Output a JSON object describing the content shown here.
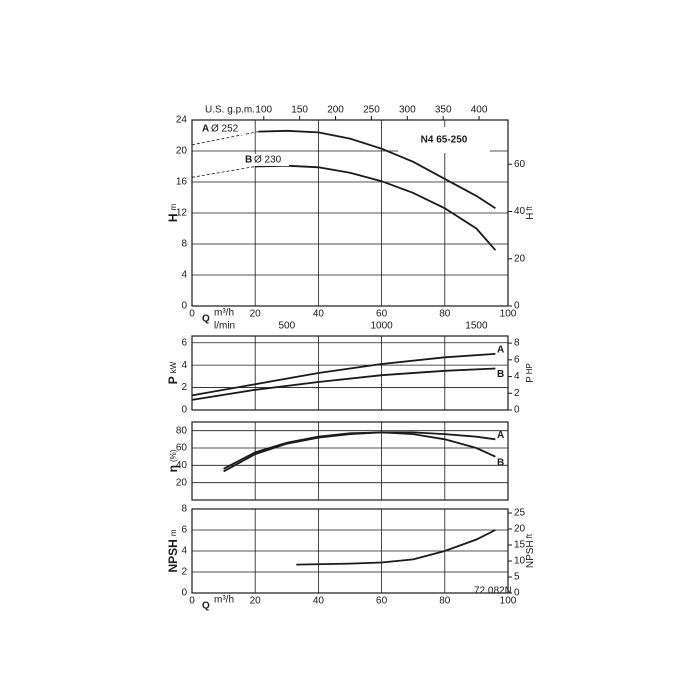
{
  "chart_data": [
    {
      "type": "line",
      "title": "N4 65-250",
      "ylabel": "H",
      "yunit": "m",
      "ylim": [
        0,
        24
      ],
      "yticks": [
        0,
        4,
        8,
        12,
        16,
        20,
        24
      ],
      "y2label": "H",
      "y2unit": "ft",
      "y2lim": [
        0,
        78.74
      ],
      "y2ticks": [
        0,
        20,
        40,
        60
      ],
      "xlabel": "Q",
      "xunit": "m³/h",
      "xlim": [
        0,
        100
      ],
      "xticks": [
        0,
        20,
        40,
        60,
        80,
        100
      ],
      "x2label": "U.S. g.p.m.",
      "x2lim": [
        0,
        440.3
      ],
      "x2ticks": [
        100,
        150,
        200,
        250,
        300,
        350,
        400
      ],
      "x3unit": "l/min",
      "x3lim": [
        0,
        1666.7
      ],
      "x3ticks": [
        500,
        1000,
        1500
      ],
      "grid": true,
      "series": [
        {
          "name": "A",
          "diameter": "Ø 252",
          "color": "#1a1a1a",
          "x": [
            21,
            30,
            40,
            50,
            60,
            70,
            80,
            90,
            96
          ],
          "values": [
            22.5,
            22.6,
            22.4,
            21.6,
            20.3,
            18.6,
            16.4,
            14.2,
            12.6
          ],
          "ext_x": [
            0,
            21
          ],
          "ext_values": [
            20.8,
            22.5
          ]
        },
        {
          "name": "B",
          "diameter": "Ø 230",
          "color": "#1a1a1a",
          "x": [
            20,
            30,
            40,
            50,
            60,
            70,
            80,
            90,
            96
          ],
          "values": [
            18.0,
            18.1,
            17.9,
            17.2,
            16.1,
            14.6,
            12.6,
            10.0,
            7.2
          ],
          "ext_x": [
            0,
            20
          ],
          "ext_values": [
            16.6,
            18.0
          ]
        }
      ]
    },
    {
      "type": "line",
      "ylabel": "P",
      "yunit": "kW",
      "ylim": [
        0,
        6.6
      ],
      "yticks": [
        0,
        2,
        4,
        6
      ],
      "y2label": "P",
      "y2unit": "HP",
      "y2lim": [
        0,
        8.85
      ],
      "y2ticks": [
        0,
        2,
        4,
        6,
        8
      ],
      "xlim": [
        0,
        100
      ],
      "grid": true,
      "series": [
        {
          "name": "A",
          "color": "#1a1a1a",
          "x": [
            0,
            20,
            40,
            60,
            80,
            96
          ],
          "values": [
            1.3,
            2.3,
            3.3,
            4.1,
            4.7,
            5.0
          ]
        },
        {
          "name": "B",
          "color": "#1a1a1a",
          "x": [
            0,
            20,
            40,
            60,
            80,
            96
          ],
          "values": [
            0.9,
            1.8,
            2.5,
            3.1,
            3.5,
            3.7
          ]
        }
      ]
    },
    {
      "type": "line",
      "ylabel": "η",
      "yunit": "(%)",
      "ylim": [
        0,
        90
      ],
      "yticks": [
        20,
        40,
        60,
        80
      ],
      "xlim": [
        0,
        100
      ],
      "grid": true,
      "series": [
        {
          "name": "A",
          "color": "#1a1a1a",
          "x": [
            10,
            20,
            30,
            40,
            50,
            60,
            70,
            80,
            90,
            96
          ],
          "values": [
            36,
            55,
            66,
            73,
            77,
            78,
            78,
            76,
            73,
            70
          ]
        },
        {
          "name": "B",
          "color": "#1a1a1a",
          "x": [
            10,
            20,
            30,
            40,
            50,
            60,
            70,
            80,
            90,
            96
          ],
          "values": [
            33,
            53,
            65,
            72,
            76,
            78,
            76,
            70,
            60,
            50
          ]
        }
      ]
    },
    {
      "type": "line",
      "note": "72.082N",
      "ylabel": "NPSH",
      "yunit": "m",
      "ylim": [
        0,
        8
      ],
      "yticks": [
        0,
        2,
        4,
        6,
        8
      ],
      "y2label": "NPSH",
      "y2unit": "ft",
      "y2lim": [
        0,
        26.25
      ],
      "y2ticks": [
        0,
        5,
        10,
        15,
        20,
        25
      ],
      "xlabel": "Q",
      "xunit": "m³/h",
      "xlim": [
        0,
        100
      ],
      "xticks": [
        0,
        20,
        40,
        60,
        80,
        100
      ],
      "grid": true,
      "series": [
        {
          "name": "NPSH",
          "color": "#1a1a1a",
          "x": [
            33,
            50,
            60,
            70,
            80,
            90,
            96
          ],
          "values": [
            2.7,
            2.8,
            2.9,
            3.2,
            4.0,
            5.1,
            6.0
          ]
        }
      ]
    }
  ]
}
